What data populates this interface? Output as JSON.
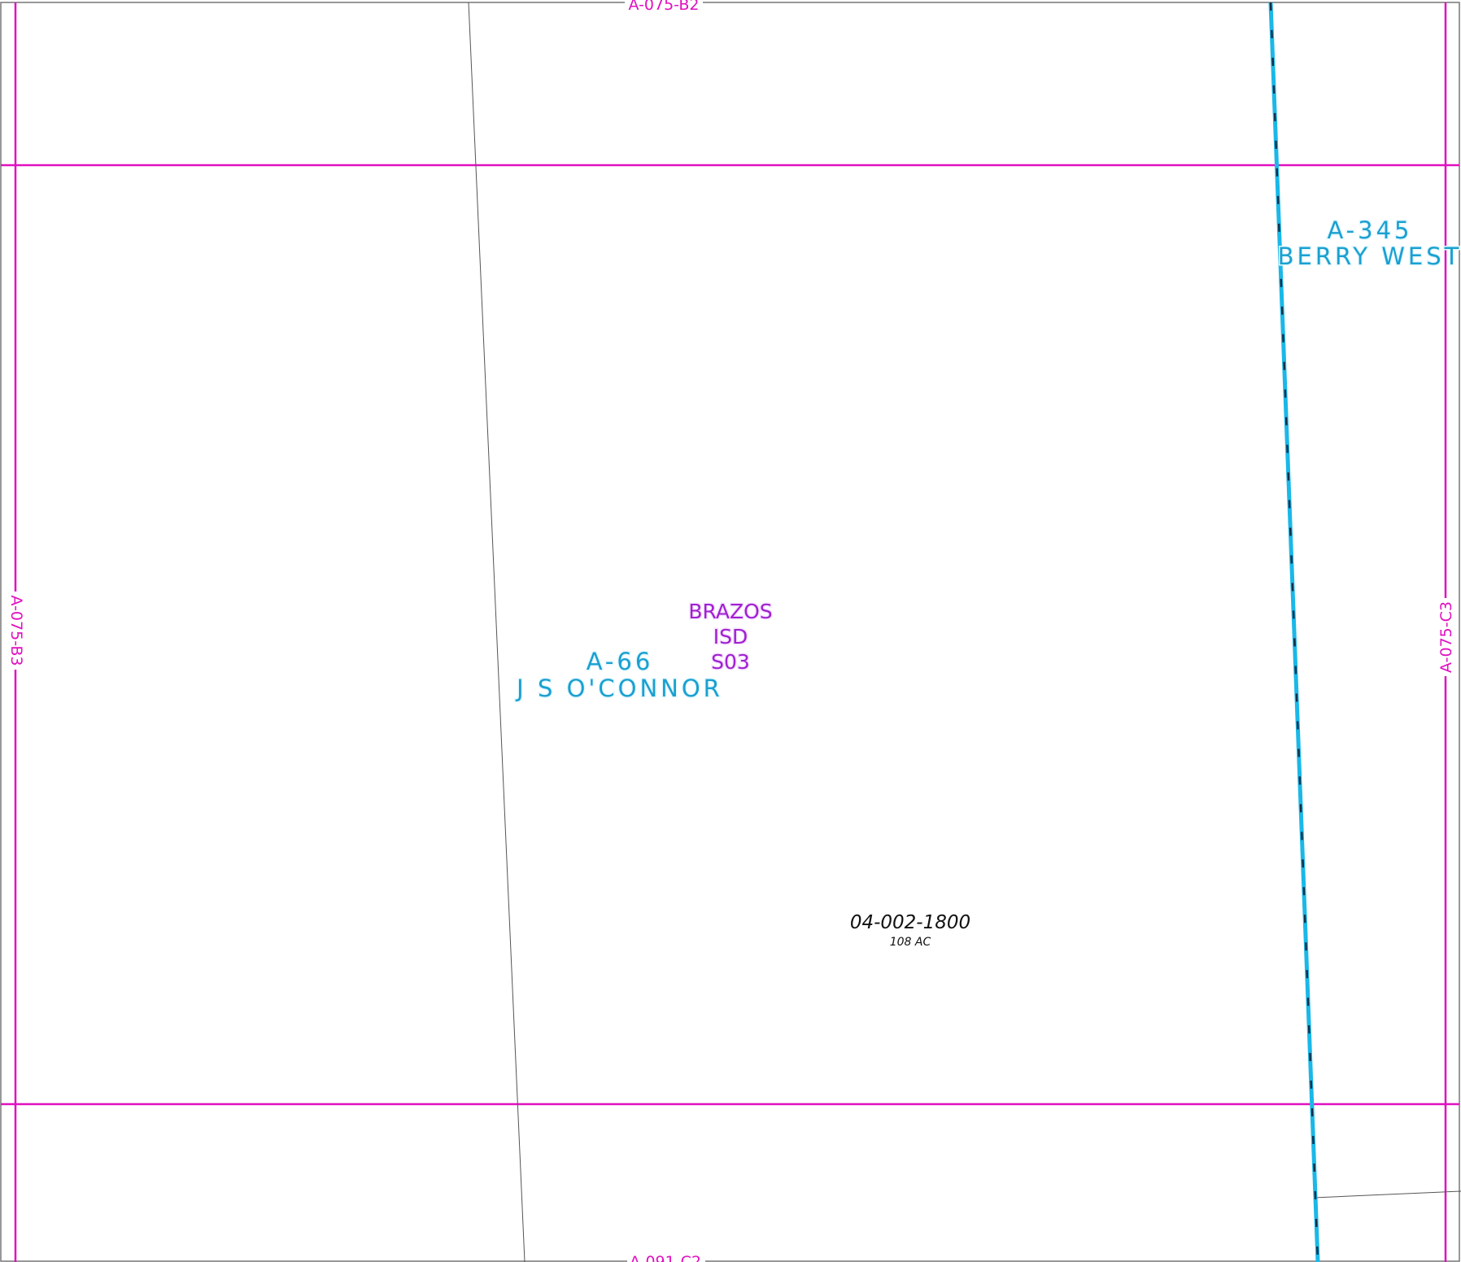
{
  "neighbors": {
    "top": "A-075-B2",
    "left": "A-075-B3",
    "right": "A-075-C3",
    "bottom": "A-091-C2"
  },
  "abstracts": {
    "west": {
      "number": "A-66",
      "name": "J S O'CONNOR"
    },
    "east": {
      "number": "A-345",
      "name": "BERRY WEST"
    }
  },
  "school_district": {
    "line1": "BRAZOS",
    "line2": "ISD",
    "line3": "S03"
  },
  "parcel": {
    "id": "04-002-1800",
    "acres": "108 AC"
  },
  "colors": {
    "grid_line": "#e010c0",
    "abstract_text": "#1aa0d0",
    "isd_text": "#a020d0",
    "survey_line": "#1ab8e8",
    "parcel_line": "#555555"
  }
}
